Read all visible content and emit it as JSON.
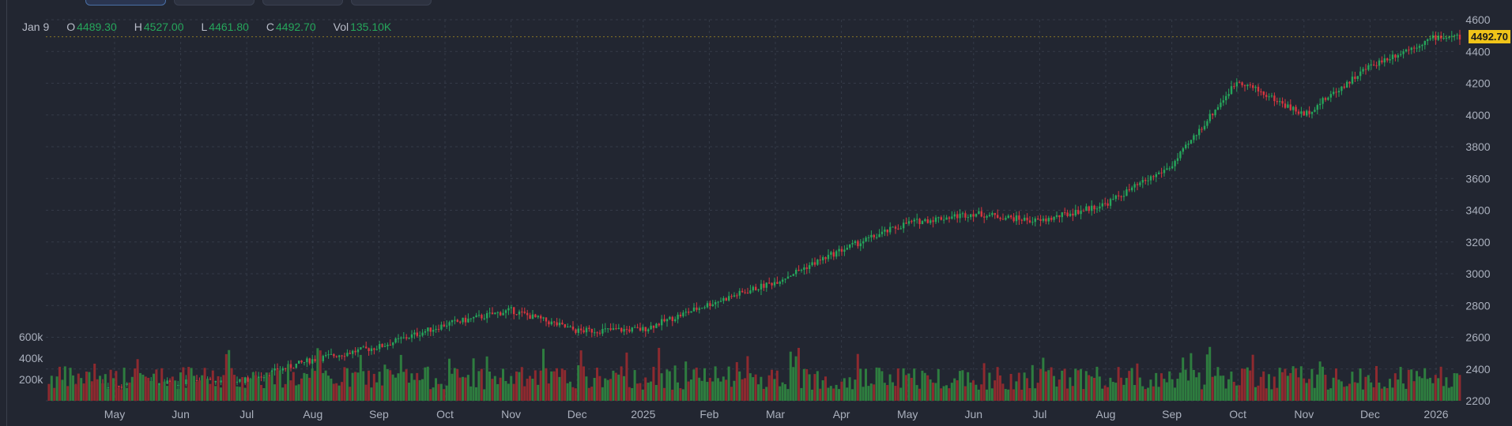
{
  "tabs": [
    {
      "label": ""
    },
    {
      "label": ""
    },
    {
      "label": ""
    },
    {
      "label": ""
    },
    {
      "label": ""
    }
  ],
  "ohlc": {
    "date": "Jan 9",
    "o_label": "O",
    "o": "4489.30",
    "h_label": "H",
    "h": "4527.00",
    "l_label": "L",
    "l": "4461.80",
    "c_label": "C",
    "c": "4492.70",
    "vol_label": "Vol",
    "vol": "135.10K"
  },
  "last_price": "4492.70",
  "colors": {
    "up": "#26a65b",
    "down": "#d6363f",
    "volume_up": "#2e7d3f",
    "volume_down": "#8e2a2f",
    "grid": "#343a48",
    "background": "#222631",
    "price_tag": "#f0c419"
  },
  "chart_data": {
    "type": "candlestick",
    "price_axis": {
      "ticks": [
        "2200",
        "2400",
        "2600",
        "2800",
        "3000",
        "3200",
        "3400",
        "3600",
        "3800",
        "4000",
        "4200",
        "4400",
        "4600"
      ],
      "ylim": [
        2200,
        4600
      ]
    },
    "volume_axis": {
      "ticks": [
        "200k",
        "400k",
        "600k"
      ]
    },
    "time_axis": {
      "ticks": [
        "May",
        "Jun",
        "Jul",
        "Aug",
        "Sep",
        "Oct",
        "Nov",
        "Dec",
        "2025",
        "Feb",
        "Mar",
        "Apr",
        "May",
        "Jun",
        "Jul",
        "Aug",
        "Sep",
        "Oct",
        "Nov",
        "Dec",
        "2026"
      ]
    },
    "series": [
      {
        "month_index": 0,
        "close": 2300
      },
      {
        "month_index": 1,
        "close": 2315
      },
      {
        "month_index": 2,
        "close": 2330
      },
      {
        "month_index": 3,
        "close": 2460
      },
      {
        "month_index": 4,
        "close": 2540
      },
      {
        "month_index": 5,
        "close": 2680
      },
      {
        "month_index": 6,
        "close": 2770
      },
      {
        "month_index": 7,
        "close": 2640
      },
      {
        "month_index": 8,
        "close": 2650
      },
      {
        "month_index": 9,
        "close": 2810
      },
      {
        "month_index": 10,
        "close": 2950
      },
      {
        "month_index": 11,
        "close": 3150
      },
      {
        "month_index": 12,
        "close": 3320
      },
      {
        "month_index": 13,
        "close": 3380
      },
      {
        "month_index": 14,
        "close": 3330
      },
      {
        "month_index": 15,
        "close": 3440
      },
      {
        "month_index": 16,
        "close": 3680
      },
      {
        "month_index": 17,
        "close": 4220
      },
      {
        "month_index": 18,
        "close": 4000
      },
      {
        "month_index": 19,
        "close": 4310
      },
      {
        "month_index": 20,
        "close": 4492.7
      }
    ],
    "last_close": 4492.7
  }
}
